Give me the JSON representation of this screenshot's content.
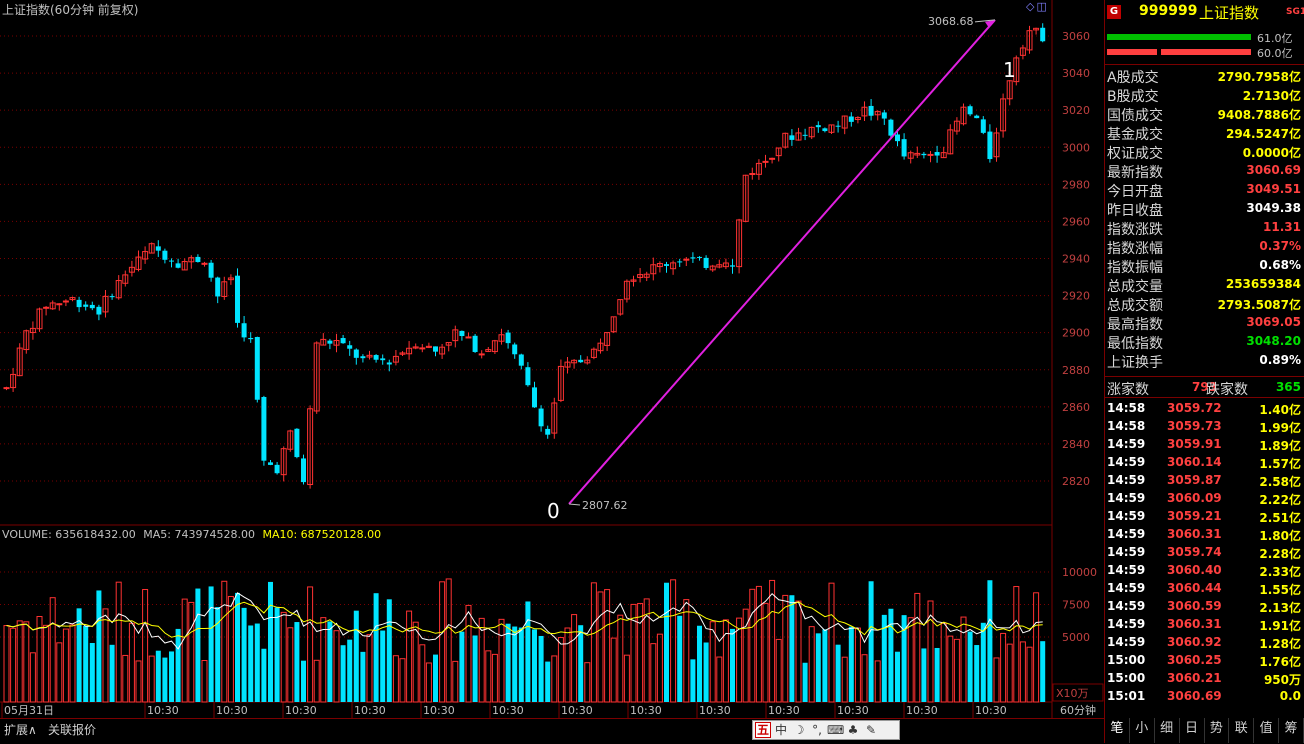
{
  "chart": {
    "title": "上证指数(60分钟 前复权)",
    "price_axis_ticks": [
      "3060",
      "3040",
      "3020",
      "3000",
      "2980",
      "2960",
      "2940",
      "2920",
      "2900",
      "2880",
      "2860",
      "2840",
      "2820"
    ],
    "vol_axis_ticks": [
      "10000",
      "7500",
      "5000"
    ],
    "vol_unit": "X10万",
    "time_labels": [
      "05月31日",
      "10:30",
      "10:30",
      "10:30",
      "10:30",
      "10:30",
      "10:30",
      "10:30",
      "10:30",
      "10:30",
      "10:30",
      "10:30",
      "10:30",
      "10:30"
    ],
    "period_label": "60分钟",
    "high_label": "3068.68",
    "low_label": "2807.62",
    "wave_start": "0",
    "wave_end": "1",
    "volume_legend": {
      "volume": "VOLUME: 635618432.00",
      "ma5": "MA5: 743974528.00",
      "ma10": "MA10: 687520128.00"
    },
    "colors": {
      "up": "#ff3232",
      "down": "#00e4ff",
      "ma5": "#ffffff",
      "ma10": "#ffff00",
      "trendline": "#e020e0",
      "grid": "#7a0000"
    }
  },
  "chart_data": {
    "type": "candlestick",
    "title": "上证指数(60分钟 前复权)",
    "y_range": [
      2805,
      3070
    ],
    "high": 3068.68,
    "low": 2807.62
  },
  "bottom_bar": {
    "tab1": "扩展∧",
    "tab2": "关联报价"
  },
  "ime": {
    "logo": "五",
    "mode": "中",
    "punct": "☽",
    "quote": "°,",
    "kbd": "⌨",
    "tools": "♣",
    "wrench": "✎"
  },
  "quote": {
    "flag": "G",
    "code": "999999",
    "name": "上证指数",
    "tag": "SG1",
    "bar1_label": "61.0亿",
    "bar2_label": "60.0亿",
    "rows": [
      {
        "k": "A股成交",
        "v": "2790.7958亿",
        "c": "#ffff00"
      },
      {
        "k": "B股成交",
        "v": "2.7130亿",
        "c": "#ffff00"
      },
      {
        "k": "国债成交",
        "v": "9408.7886亿",
        "c": "#ffff00"
      },
      {
        "k": "基金成交",
        "v": "294.5247亿",
        "c": "#ffff00"
      },
      {
        "k": "权证成交",
        "v": "0.0000亿",
        "c": "#ffff00"
      },
      {
        "k": "最新指数",
        "v": "3060.69",
        "c": "#ff4040"
      },
      {
        "k": "今日开盘",
        "v": "3049.51",
        "c": "#ff4040"
      },
      {
        "k": "昨日收盘",
        "v": "3049.38",
        "c": "#ffffff"
      },
      {
        "k": "指数涨跌",
        "v": "11.31",
        "c": "#ff4040"
      },
      {
        "k": "指数涨幅",
        "v": "0.37%",
        "c": "#ff4040"
      },
      {
        "k": "指数振幅",
        "v": "0.68%",
        "c": "#ffffff"
      },
      {
        "k": "总成交量",
        "v": "253659384",
        "c": "#ffff00"
      },
      {
        "k": "总成交额",
        "v": "2793.5087亿",
        "c": "#ffff00"
      },
      {
        "k": "最高指数",
        "v": "3069.05",
        "c": "#ff4040"
      },
      {
        "k": "最低指数",
        "v": "3048.20",
        "c": "#00e000"
      },
      {
        "k": "上证换手",
        "v": "0.89%",
        "c": "#ffffff"
      }
    ],
    "rise_label": "涨家数",
    "rise_count": "793",
    "fall_label": "跌家数",
    "fall_count": "365",
    "ticks": [
      {
        "t": "14:58",
        "p": "3059.72",
        "a": "1.40亿"
      },
      {
        "t": "14:58",
        "p": "3059.73",
        "a": "1.99亿"
      },
      {
        "t": "14:59",
        "p": "3059.91",
        "a": "1.89亿"
      },
      {
        "t": "14:59",
        "p": "3060.14",
        "a": "1.57亿"
      },
      {
        "t": "14:59",
        "p": "3059.87",
        "a": "2.58亿"
      },
      {
        "t": "14:59",
        "p": "3060.09",
        "a": "2.22亿"
      },
      {
        "t": "14:59",
        "p": "3059.21",
        "a": "2.51亿"
      },
      {
        "t": "14:59",
        "p": "3060.31",
        "a": "1.80亿"
      },
      {
        "t": "14:59",
        "p": "3059.74",
        "a": "2.28亿"
      },
      {
        "t": "14:59",
        "p": "3060.40",
        "a": "2.33亿"
      },
      {
        "t": "14:59",
        "p": "3060.44",
        "a": "1.55亿"
      },
      {
        "t": "14:59",
        "p": "3060.59",
        "a": "2.13亿"
      },
      {
        "t": "14:59",
        "p": "3060.31",
        "a": "1.91亿"
      },
      {
        "t": "14:59",
        "p": "3060.92",
        "a": "1.28亿"
      },
      {
        "t": "15:00",
        "p": "3060.25",
        "a": "1.76亿"
      },
      {
        "t": "15:00",
        "p": "3060.21",
        "a": "950万"
      },
      {
        "t": "15:01",
        "p": "3060.69",
        "a": "0.0"
      }
    ],
    "tabs": [
      "笔",
      "小",
      "细",
      "日",
      "势",
      "联",
      "值",
      "筹"
    ]
  }
}
